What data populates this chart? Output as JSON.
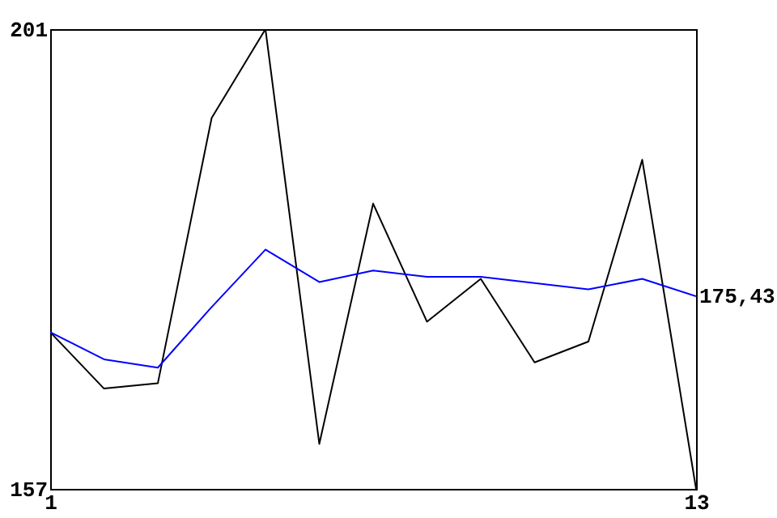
{
  "chart_data": {
    "type": "line",
    "x": [
      1,
      2,
      3,
      4,
      5,
      6,
      7,
      8,
      9,
      10,
      11,
      12,
      13
    ],
    "series": [
      {
        "color": "#000000",
        "values": [
          172,
          166.6,
          167.1,
          192.5,
          201,
          161.3,
          184.3,
          173,
          177.1,
          169.1,
          171.1,
          188.5,
          157
        ]
      },
      {
        "color": "#0000ff",
        "values": [
          172,
          169.4,
          168.6,
          174.4,
          179.9,
          176.8,
          177.9,
          177.3,
          177.3,
          176.7,
          176.1,
          177.1,
          175.43
        ]
      }
    ],
    "xlim": [
      1,
      13
    ],
    "xticks": [
      1,
      13
    ],
    "ylim": [
      157,
      201
    ],
    "yticks": [
      157,
      201
    ],
    "annotations": [
      {
        "text": "175,43",
        "x": 13,
        "y": 175.43
      }
    ],
    "grid": false,
    "marker": "none",
    "line_style": "solid"
  }
}
